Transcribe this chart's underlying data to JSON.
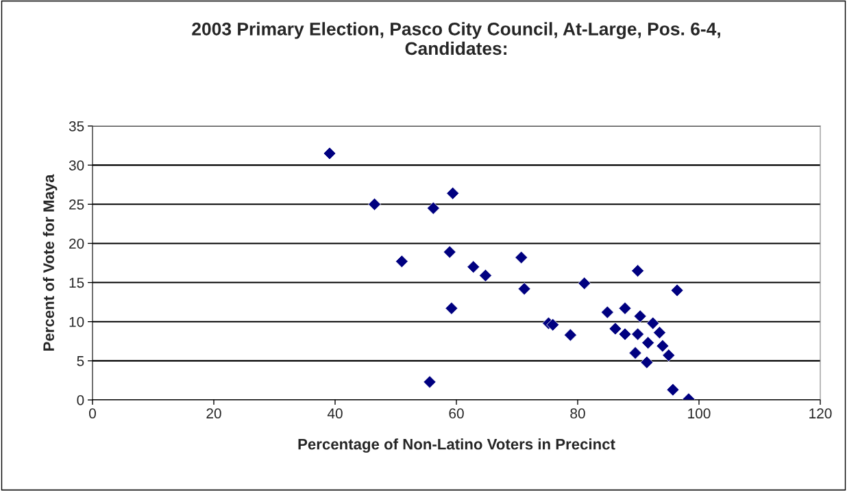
{
  "chart_data": {
    "type": "scatter",
    "title": "2003 Primary Election, Pasco City Council, At-Large, Pos. 6-4,\nCandidates:",
    "xlabel": "Percentage of Non-Latino Voters in Precinct",
    "ylabel": "Percent of Vote for Maya",
    "series": [
      {
        "color": "#000080",
        "x": [
          39.1,
          46.5,
          56.2,
          59.4,
          51.0,
          58.9,
          62.8,
          64.8,
          70.7,
          71.2,
          59.2,
          55.6,
          89.9,
          81.1,
          96.4,
          75.2,
          75.9,
          78.8,
          84.9,
          87.8,
          90.3,
          92.4,
          86.2,
          87.8,
          89.9,
          93.5,
          91.6,
          94.0,
          95.0,
          89.5,
          91.4,
          95.7,
          98.3
        ],
        "values": [
          31.5,
          25.0,
          24.5,
          26.4,
          17.7,
          18.9,
          17.0,
          15.9,
          18.2,
          14.2,
          11.7,
          2.3,
          16.5,
          14.9,
          14.0,
          9.8,
          9.6,
          8.3,
          11.2,
          11.7,
          10.7,
          9.8,
          9.1,
          8.4,
          8.4,
          8.6,
          7.3,
          6.9,
          5.7,
          6.0,
          4.8,
          1.3,
          0.1
        ]
      }
    ],
    "xlim": [
      0,
      120
    ],
    "xticks": [
      0,
      20,
      40,
      60,
      80,
      100,
      120
    ],
    "ylim": [
      0,
      35
    ],
    "yticks": [
      0,
      5,
      10,
      15,
      20,
      25,
      30,
      35
    ],
    "grid": "y",
    "marker": "diamond",
    "legend": false
  }
}
